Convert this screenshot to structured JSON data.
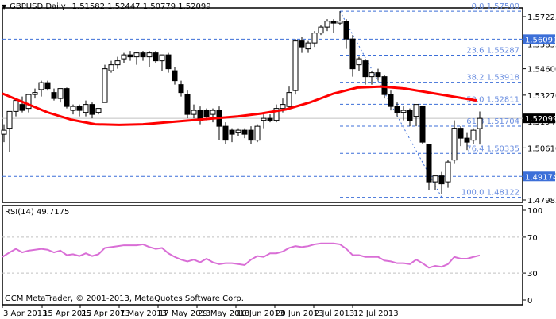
{
  "header": {
    "symbol_label": "GBPUSD,Daily",
    "ohlc": "1.51582 1.52447 1.50779 1.52099"
  },
  "rsi_panel": {
    "label": "RSI(14) 49.7175",
    "copyright": "GCM MetaTrader, © 2001-2013, MetaQuotes Software Corp."
  },
  "colors": {
    "ma": "#ff0000",
    "fib": "#3c6fd8",
    "fib_text": "#6a8ee0",
    "rsi": "#d96ed6",
    "grid_gray": "#c0c0c0",
    "badge_blue": "#3c6fd8",
    "badge_black": "#000000"
  },
  "chart_data": [
    {
      "type": "candlestick",
      "title": "GBPUSD,Daily",
      "ohlc_last": {
        "open": 1.51582,
        "high": 1.52447,
        "low": 1.50779,
        "close": 1.52099
      },
      "x_tick_labels": [
        "3 Apr 2013",
        "15 Apr 2013",
        "25 Apr 2013",
        "7 May 2013",
        "17 May 2013",
        "29 May 2013",
        "10 Jun 2013",
        "20 Jun 2013",
        "2 Jul 2013",
        "12 Jul 2013"
      ],
      "y_tick_labels": [
        "1.57225",
        "1.55855",
        "1.54600",
        "1.53270",
        "1.51940",
        "1.50610",
        "1.49280",
        "1.47985"
      ],
      "ylim": [
        1.4775,
        1.5805
      ],
      "current_price": 1.52099,
      "badges": [
        {
          "value": "1.56091",
          "style": "blue"
        },
        {
          "value": "1.52099",
          "style": "black"
        },
        {
          "value": "1.49174",
          "style": "blue"
        }
      ],
      "horizontal_lines": [
        1.56091,
        1.49174
      ],
      "fibonacci": [
        {
          "level": "0.0",
          "price": 1.575
        },
        {
          "level": "23.6",
          "price": 1.55287
        },
        {
          "level": "38.2",
          "price": 1.53918
        },
        {
          "level": "50.0",
          "price": 1.52811
        },
        {
          "level": "61.8",
          "price": 1.51704
        },
        {
          "level": "76.4",
          "price": 1.50335
        },
        {
          "level": "100.0",
          "price": 1.48122
        }
      ],
      "moving_average": {
        "color": "#ff0000",
        "points": [
          [
            3,
            1.5335
          ],
          [
            30,
            1.529
          ],
          [
            60,
            1.524
          ],
          [
            90,
            1.5203
          ],
          [
            120,
            1.518
          ],
          [
            150,
            1.5177
          ],
          [
            180,
            1.518
          ],
          [
            210,
            1.519
          ],
          [
            240,
            1.52
          ],
          [
            270,
            1.521
          ],
          [
            300,
            1.522
          ],
          [
            330,
            1.5235
          ],
          [
            360,
            1.5255
          ],
          [
            390,
            1.529
          ],
          [
            420,
            1.5335
          ],
          [
            450,
            1.5365
          ],
          [
            480,
            1.537
          ],
          [
            510,
            1.536
          ],
          [
            540,
            1.534
          ],
          [
            570,
            1.532
          ],
          [
            600,
            1.53
          ]
        ]
      },
      "candles": [
        {
          "x": 5,
          "o": 1.513,
          "h": 1.518,
          "l": 1.509,
          "c": 1.515
        },
        {
          "x": 12,
          "o": 1.516,
          "h": 1.524,
          "l": 1.504,
          "c": 1.5245
        },
        {
          "x": 20,
          "o": 1.5245,
          "h": 1.531,
          "l": 1.522,
          "c": 1.53
        },
        {
          "x": 28,
          "o": 1.528,
          "h": 1.532,
          "l": 1.524,
          "c": 1.525
        },
        {
          "x": 36,
          "o": 1.526,
          "h": 1.533,
          "l": 1.524,
          "c": 1.533
        },
        {
          "x": 44,
          "o": 1.533,
          "h": 1.536,
          "l": 1.531,
          "c": 1.534
        },
        {
          "x": 52,
          "o": 1.5355,
          "h": 1.54,
          "l": 1.532,
          "c": 1.539
        },
        {
          "x": 60,
          "o": 1.539,
          "h": 1.54,
          "l": 1.535,
          "c": 1.536
        },
        {
          "x": 68,
          "o": 1.534,
          "h": 1.536,
          "l": 1.53,
          "c": 1.531
        },
        {
          "x": 76,
          "o": 1.531,
          "h": 1.536,
          "l": 1.529,
          "c": 1.536
        },
        {
          "x": 84,
          "o": 1.536,
          "h": 1.5365,
          "l": 1.526,
          "c": 1.527
        },
        {
          "x": 92,
          "o": 1.525,
          "h": 1.528,
          "l": 1.523,
          "c": 1.527
        },
        {
          "x": 100,
          "o": 1.527,
          "h": 1.528,
          "l": 1.522,
          "c": 1.525
        },
        {
          "x": 108,
          "o": 1.524,
          "h": 1.53,
          "l": 1.522,
          "c": 1.528
        },
        {
          "x": 116,
          "o": 1.528,
          "h": 1.529,
          "l": 1.521,
          "c": 1.523
        },
        {
          "x": 124,
          "o": 1.524,
          "h": 1.526,
          "l": 1.523,
          "c": 1.526
        },
        {
          "x": 132,
          "o": 1.529,
          "h": 1.548,
          "l": 1.529,
          "c": 1.546
        },
        {
          "x": 140,
          "o": 1.545,
          "h": 1.55,
          "l": 1.544,
          "c": 1.548
        },
        {
          "x": 148,
          "o": 1.548,
          "h": 1.552,
          "l": 1.546,
          "c": 1.55
        },
        {
          "x": 156,
          "o": 1.551,
          "h": 1.554,
          "l": 1.549,
          "c": 1.553
        },
        {
          "x": 164,
          "o": 1.553,
          "h": 1.555,
          "l": 1.55,
          "c": 1.552
        },
        {
          "x": 172,
          "o": 1.552,
          "h": 1.5545,
          "l": 1.548,
          "c": 1.554
        },
        {
          "x": 180,
          "o": 1.554,
          "h": 1.555,
          "l": 1.55,
          "c": 1.552
        },
        {
          "x": 188,
          "o": 1.552,
          "h": 1.555,
          "l": 1.547,
          "c": 1.554
        },
        {
          "x": 196,
          "o": 1.554,
          "h": 1.555,
          "l": 1.549,
          "c": 1.55
        },
        {
          "x": 204,
          "o": 1.55,
          "h": 1.553,
          "l": 1.545,
          "c": 1.553
        },
        {
          "x": 212,
          "o": 1.553,
          "h": 1.554,
          "l": 1.544,
          "c": 1.546
        },
        {
          "x": 220,
          "o": 1.545,
          "h": 1.547,
          "l": 1.538,
          "c": 1.54
        },
        {
          "x": 228,
          "o": 1.538,
          "h": 1.54,
          "l": 1.532,
          "c": 1.534
        },
        {
          "x": 236,
          "o": 1.533,
          "h": 1.535,
          "l": 1.521,
          "c": 1.523
        },
        {
          "x": 244,
          "o": 1.523,
          "h": 1.528,
          "l": 1.521,
          "c": 1.525
        },
        {
          "x": 252,
          "o": 1.525,
          "h": 1.527,
          "l": 1.518,
          "c": 1.52
        },
        {
          "x": 260,
          "o": 1.525,
          "h": 1.526,
          "l": 1.52,
          "c": 1.522
        },
        {
          "x": 268,
          "o": 1.523,
          "h": 1.526,
          "l": 1.519,
          "c": 1.525
        },
        {
          "x": 276,
          "o": 1.525,
          "h": 1.527,
          "l": 1.51,
          "c": 1.517
        },
        {
          "x": 284,
          "o": 1.517,
          "h": 1.519,
          "l": 1.508,
          "c": 1.51
        },
        {
          "x": 292,
          "o": 1.515,
          "h": 1.516,
          "l": 1.509,
          "c": 1.513
        },
        {
          "x": 300,
          "o": 1.514,
          "h": 1.516,
          "l": 1.512,
          "c": 1.515
        },
        {
          "x": 308,
          "o": 1.515,
          "h": 1.516,
          "l": 1.511,
          "c": 1.513
        },
        {
          "x": 316,
          "o": 1.515,
          "h": 1.517,
          "l": 1.508,
          "c": 1.51
        },
        {
          "x": 324,
          "o": 1.51,
          "h": 1.518,
          "l": 1.509,
          "c": 1.517
        },
        {
          "x": 332,
          "o": 1.52,
          "h": 1.523,
          "l": 1.516,
          "c": 1.521
        },
        {
          "x": 340,
          "o": 1.521,
          "h": 1.523,
          "l": 1.519,
          "c": 1.52
        },
        {
          "x": 348,
          "o": 1.52,
          "h": 1.528,
          "l": 1.519,
          "c": 1.526
        },
        {
          "x": 356,
          "o": 1.526,
          "h": 1.531,
          "l": 1.524,
          "c": 1.528
        },
        {
          "x": 364,
          "o": 1.527,
          "h": 1.537,
          "l": 1.526,
          "c": 1.534
        },
        {
          "x": 372,
          "o": 1.535,
          "h": 1.561,
          "l": 1.533,
          "c": 1.56
        },
        {
          "x": 380,
          "o": 1.56,
          "h": 1.562,
          "l": 1.554,
          "c": 1.557
        },
        {
          "x": 388,
          "o": 1.556,
          "h": 1.56,
          "l": 1.554,
          "c": 1.559
        },
        {
          "x": 396,
          "o": 1.559,
          "h": 1.565,
          "l": 1.557,
          "c": 1.564
        },
        {
          "x": 404,
          "o": 1.564,
          "h": 1.568,
          "l": 1.563,
          "c": 1.567
        },
        {
          "x": 412,
          "o": 1.567,
          "h": 1.571,
          "l": 1.565,
          "c": 1.57
        },
        {
          "x": 420,
          "o": 1.57,
          "h": 1.571,
          "l": 1.564,
          "c": 1.569
        },
        {
          "x": 428,
          "o": 1.569,
          "h": 1.575,
          "l": 1.568,
          "c": 1.57
        },
        {
          "x": 436,
          "o": 1.57,
          "h": 1.571,
          "l": 1.556,
          "c": 1.561
        },
        {
          "x": 444,
          "o": 1.561,
          "h": 1.563,
          "l": 1.542,
          "c": 1.546
        },
        {
          "x": 452,
          "o": 1.548,
          "h": 1.552,
          "l": 1.545,
          "c": 1.551
        },
        {
          "x": 460,
          "o": 1.55,
          "h": 1.551,
          "l": 1.538,
          "c": 1.542
        },
        {
          "x": 468,
          "o": 1.542,
          "h": 1.545,
          "l": 1.538,
          "c": 1.544
        },
        {
          "x": 476,
          "o": 1.544,
          "h": 1.546,
          "l": 1.54,
          "c": 1.542
        },
        {
          "x": 484,
          "o": 1.542,
          "h": 1.543,
          "l": 1.531,
          "c": 1.533
        },
        {
          "x": 492,
          "o": 1.533,
          "h": 1.535,
          "l": 1.525,
          "c": 1.527
        },
        {
          "x": 500,
          "o": 1.527,
          "h": 1.529,
          "l": 1.522,
          "c": 1.524
        },
        {
          "x": 508,
          "o": 1.524,
          "h": 1.527,
          "l": 1.52,
          "c": 1.525
        },
        {
          "x": 516,
          "o": 1.525,
          "h": 1.526,
          "l": 1.517,
          "c": 1.52
        },
        {
          "x": 524,
          "o": 1.522,
          "h": 1.528,
          "l": 1.517,
          "c": 1.528
        },
        {
          "x": 532,
          "o": 1.527,
          "h": 1.527,
          "l": 1.508,
          "c": 1.509
        },
        {
          "x": 540,
          "o": 1.508,
          "h": 1.508,
          "l": 1.485,
          "c": 1.489
        },
        {
          "x": 548,
          "o": 1.489,
          "h": 1.492,
          "l": 1.485,
          "c": 1.492
        },
        {
          "x": 556,
          "o": 1.492,
          "h": 1.494,
          "l": 1.483,
          "c": 1.488
        },
        {
          "x": 564,
          "o": 1.489,
          "h": 1.5,
          "l": 1.486,
          "c": 1.499
        },
        {
          "x": 572,
          "o": 1.5,
          "h": 1.52,
          "l": 1.498,
          "c": 1.516
        },
        {
          "x": 580,
          "o": 1.516,
          "h": 1.517,
          "l": 1.507,
          "c": 1.511
        },
        {
          "x": 588,
          "o": 1.511,
          "h": 1.514,
          "l": 1.505,
          "c": 1.509
        },
        {
          "x": 596,
          "o": 1.51,
          "h": 1.516,
          "l": 1.508,
          "c": 1.515
        },
        {
          "x": 604,
          "o": 1.51582,
          "h": 1.52447,
          "l": 1.50779,
          "c": 1.52099
        }
      ]
    },
    {
      "type": "line",
      "title": "RSI(14) 49.7175",
      "ylim": [
        0,
        100
      ],
      "y_tick_labels": [
        "100",
        "70",
        "30",
        "0"
      ],
      "levels": [
        70,
        30
      ],
      "last_value": 49.7175,
      "series": [
        {
          "name": "RSI(14)",
          "color": "#d96ed6",
          "points": [
            [
              3,
              48
            ],
            [
              12,
              53
            ],
            [
              20,
              57
            ],
            [
              28,
              53
            ],
            [
              36,
              55
            ],
            [
              44,
              56
            ],
            [
              52,
              57
            ],
            [
              60,
              56
            ],
            [
              68,
              53
            ],
            [
              76,
              55
            ],
            [
              84,
              50
            ],
            [
              92,
              51
            ],
            [
              100,
              49
            ],
            [
              108,
              52
            ],
            [
              116,
              49
            ],
            [
              124,
              51
            ],
            [
              132,
              58
            ],
            [
              140,
              59
            ],
            [
              148,
              60
            ],
            [
              156,
              61
            ],
            [
              164,
              61
            ],
            [
              172,
              61
            ],
            [
              180,
              62
            ],
            [
              188,
              59
            ],
            [
              196,
              57
            ],
            [
              204,
              58
            ],
            [
              212,
              52
            ],
            [
              220,
              48
            ],
            [
              228,
              45
            ],
            [
              236,
              43
            ],
            [
              244,
              45
            ],
            [
              252,
              42
            ],
            [
              260,
              46
            ],
            [
              268,
              42
            ],
            [
              276,
              40
            ],
            [
              284,
              41
            ],
            [
              292,
              41
            ],
            [
              300,
              40
            ],
            [
              308,
              39
            ],
            [
              316,
              45
            ],
            [
              324,
              49
            ],
            [
              332,
              48
            ],
            [
              340,
              52
            ],
            [
              348,
              52
            ],
            [
              356,
              54
            ],
            [
              364,
              58
            ],
            [
              372,
              60
            ],
            [
              380,
              59
            ],
            [
              388,
              60
            ],
            [
              396,
              62
            ],
            [
              404,
              63
            ],
            [
              412,
              63
            ],
            [
              420,
              63
            ],
            [
              428,
              62
            ],
            [
              436,
              57
            ],
            [
              444,
              50
            ],
            [
              452,
              50
            ],
            [
              460,
              48
            ],
            [
              468,
              48
            ],
            [
              476,
              48
            ],
            [
              484,
              44
            ],
            [
              492,
              43
            ],
            [
              500,
              41
            ],
            [
              508,
              41
            ],
            [
              516,
              40
            ],
            [
              524,
              45
            ],
            [
              532,
              41
            ],
            [
              540,
              36
            ],
            [
              548,
              38
            ],
            [
              556,
              37
            ],
            [
              564,
              40
            ],
            [
              572,
              48
            ],
            [
              580,
              46
            ],
            [
              588,
              46
            ],
            [
              596,
              48
            ],
            [
              604,
              49.7
            ]
          ]
        }
      ]
    }
  ]
}
